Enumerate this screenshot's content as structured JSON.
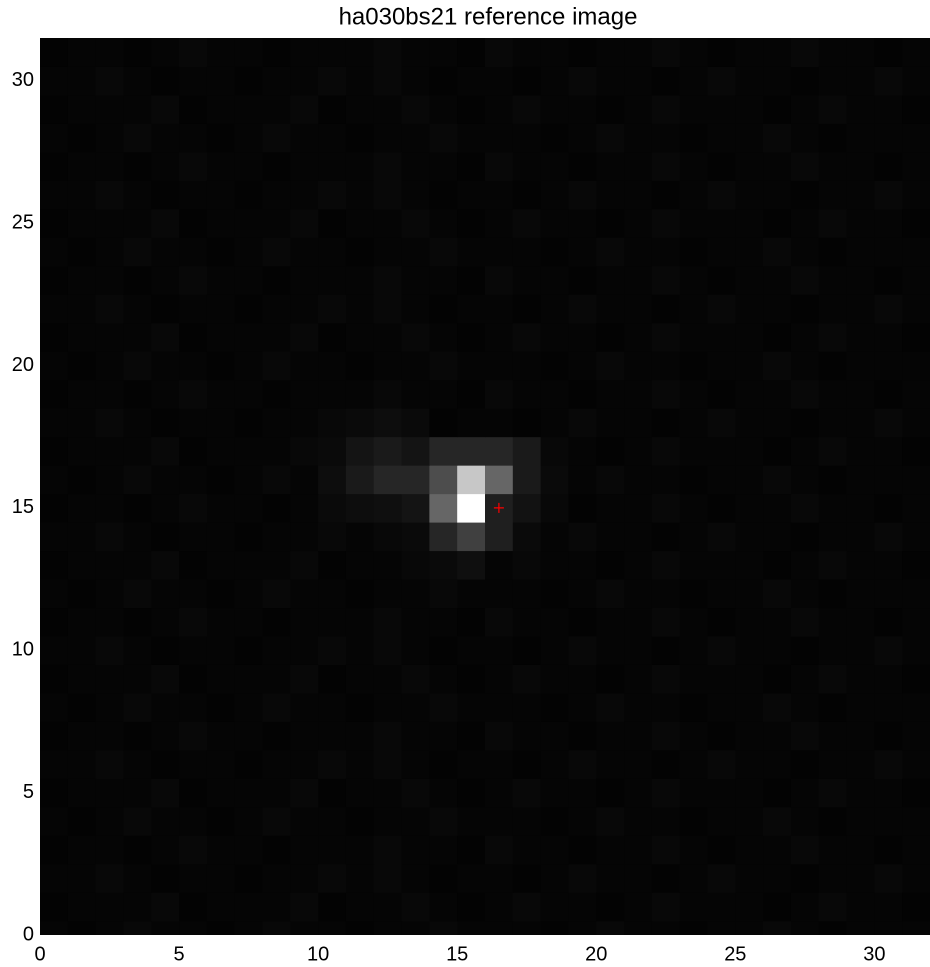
{
  "chart_data": {
    "type": "heatmap",
    "title": "ha030bs21 reference image",
    "xlim": [
      0,
      32
    ],
    "ylim": [
      0,
      31.5
    ],
    "xticks": [
      0,
      5,
      10,
      15,
      20,
      25,
      30
    ],
    "yticks": [
      0,
      5,
      10,
      15,
      20,
      25,
      30
    ],
    "colormap": "gray",
    "vmin": 0,
    "vmax": 1,
    "z": [
      [
        0.02,
        0.01,
        0.02,
        0.03,
        0.02,
        0.02,
        0.01,
        0.02,
        0.03,
        0.02,
        0.02,
        0.01,
        0.02,
        0.02,
        0.03,
        0.02,
        0.02,
        0.02,
        0.01,
        0.02,
        0.03,
        0.02,
        0.02,
        0.01,
        0.02,
        0.02,
        0.03,
        0.02,
        0.01,
        0.02,
        0.02,
        0.02
      ],
      [
        0.01,
        0.02,
        0.02,
        0.02,
        0.03,
        0.01,
        0.02,
        0.02,
        0.02,
        0.03,
        0.01,
        0.02,
        0.02,
        0.03,
        0.02,
        0.01,
        0.02,
        0.03,
        0.02,
        0.02,
        0.01,
        0.02,
        0.03,
        0.02,
        0.02,
        0.02,
        0.01,
        0.02,
        0.03,
        0.02,
        0.02,
        0.01
      ],
      [
        0.02,
        0.02,
        0.03,
        0.02,
        0.01,
        0.02,
        0.02,
        0.01,
        0.02,
        0.02,
        0.03,
        0.02,
        0.03,
        0.02,
        0.01,
        0.02,
        0.02,
        0.01,
        0.02,
        0.03,
        0.02,
        0.02,
        0.01,
        0.02,
        0.03,
        0.02,
        0.02,
        0.01,
        0.02,
        0.02,
        0.03,
        0.02
      ],
      [
        0.01,
        0.02,
        0.02,
        0.01,
        0.02,
        0.03,
        0.02,
        0.02,
        0.01,
        0.02,
        0.02,
        0.02,
        0.03,
        0.02,
        0.02,
        0.01,
        0.03,
        0.02,
        0.02,
        0.01,
        0.02,
        0.02,
        0.03,
        0.02,
        0.01,
        0.02,
        0.02,
        0.03,
        0.02,
        0.02,
        0.01,
        0.02
      ],
      [
        0.02,
        0.01,
        0.02,
        0.03,
        0.02,
        0.02,
        0.01,
        0.02,
        0.03,
        0.02,
        0.02,
        0.01,
        0.02,
        0.02,
        0.03,
        0.02,
        0.02,
        0.02,
        0.01,
        0.02,
        0.03,
        0.02,
        0.02,
        0.01,
        0.02,
        0.02,
        0.03,
        0.02,
        0.01,
        0.02,
        0.02,
        0.02
      ],
      [
        0.01,
        0.02,
        0.02,
        0.02,
        0.03,
        0.01,
        0.02,
        0.02,
        0.02,
        0.03,
        0.01,
        0.02,
        0.02,
        0.03,
        0.02,
        0.01,
        0.02,
        0.03,
        0.02,
        0.02,
        0.01,
        0.02,
        0.03,
        0.02,
        0.02,
        0.02,
        0.01,
        0.02,
        0.03,
        0.02,
        0.02,
        0.01
      ],
      [
        0.02,
        0.02,
        0.03,
        0.02,
        0.01,
        0.02,
        0.02,
        0.01,
        0.02,
        0.02,
        0.03,
        0.02,
        0.03,
        0.02,
        0.01,
        0.02,
        0.02,
        0.01,
        0.02,
        0.03,
        0.02,
        0.02,
        0.01,
        0.02,
        0.03,
        0.02,
        0.02,
        0.01,
        0.02,
        0.02,
        0.03,
        0.02
      ],
      [
        0.01,
        0.02,
        0.02,
        0.01,
        0.02,
        0.03,
        0.02,
        0.02,
        0.01,
        0.02,
        0.02,
        0.02,
        0.03,
        0.02,
        0.02,
        0.01,
        0.03,
        0.02,
        0.02,
        0.01,
        0.02,
        0.02,
        0.03,
        0.02,
        0.01,
        0.02,
        0.02,
        0.03,
        0.02,
        0.02,
        0.01,
        0.02
      ],
      [
        0.02,
        0.01,
        0.02,
        0.03,
        0.02,
        0.02,
        0.01,
        0.02,
        0.03,
        0.02,
        0.02,
        0.01,
        0.02,
        0.02,
        0.03,
        0.02,
        0.02,
        0.02,
        0.01,
        0.02,
        0.03,
        0.02,
        0.02,
        0.01,
        0.02,
        0.02,
        0.03,
        0.02,
        0.01,
        0.02,
        0.02,
        0.02
      ],
      [
        0.01,
        0.02,
        0.02,
        0.02,
        0.03,
        0.01,
        0.02,
        0.02,
        0.02,
        0.03,
        0.01,
        0.02,
        0.02,
        0.03,
        0.02,
        0.01,
        0.02,
        0.03,
        0.02,
        0.02,
        0.01,
        0.02,
        0.03,
        0.02,
        0.02,
        0.02,
        0.01,
        0.02,
        0.03,
        0.02,
        0.02,
        0.01
      ],
      [
        0.02,
        0.02,
        0.03,
        0.02,
        0.01,
        0.02,
        0.02,
        0.01,
        0.02,
        0.02,
        0.03,
        0.02,
        0.03,
        0.02,
        0.01,
        0.02,
        0.02,
        0.01,
        0.02,
        0.03,
        0.02,
        0.02,
        0.01,
        0.02,
        0.03,
        0.02,
        0.02,
        0.01,
        0.02,
        0.02,
        0.03,
        0.02
      ],
      [
        0.01,
        0.02,
        0.02,
        0.01,
        0.02,
        0.03,
        0.02,
        0.02,
        0.01,
        0.02,
        0.02,
        0.02,
        0.03,
        0.02,
        0.02,
        0.01,
        0.03,
        0.02,
        0.02,
        0.01,
        0.02,
        0.02,
        0.03,
        0.02,
        0.01,
        0.02,
        0.02,
        0.03,
        0.02,
        0.02,
        0.01,
        0.02
      ],
      [
        0.02,
        0.01,
        0.02,
        0.03,
        0.02,
        0.02,
        0.01,
        0.02,
        0.03,
        0.02,
        0.02,
        0.01,
        0.02,
        0.02,
        0.03,
        0.02,
        0.02,
        0.02,
        0.01,
        0.02,
        0.03,
        0.02,
        0.02,
        0.01,
        0.02,
        0.02,
        0.03,
        0.02,
        0.01,
        0.02,
        0.02,
        0.02
      ],
      [
        0.01,
        0.02,
        0.02,
        0.02,
        0.03,
        0.01,
        0.02,
        0.02,
        0.02,
        0.03,
        0.01,
        0.02,
        0.02,
        0.03,
        0.04,
        0.06,
        0.02,
        0.03,
        0.02,
        0.02,
        0.01,
        0.02,
        0.03,
        0.02,
        0.02,
        0.02,
        0.01,
        0.02,
        0.03,
        0.02,
        0.02,
        0.01
      ],
      [
        0.02,
        0.02,
        0.03,
        0.02,
        0.01,
        0.02,
        0.02,
        0.01,
        0.02,
        0.02,
        0.03,
        0.02,
        0.03,
        0.04,
        0.15,
        0.25,
        0.12,
        0.04,
        0.02,
        0.03,
        0.02,
        0.02,
        0.01,
        0.02,
        0.03,
        0.02,
        0.02,
        0.01,
        0.02,
        0.02,
        0.03,
        0.02
      ],
      [
        0.01,
        0.02,
        0.02,
        0.01,
        0.02,
        0.03,
        0.02,
        0.02,
        0.01,
        0.02,
        0.04,
        0.05,
        0.06,
        0.08,
        0.4,
        1.0,
        0.12,
        0.07,
        0.03,
        0.01,
        0.02,
        0.02,
        0.03,
        0.02,
        0.01,
        0.02,
        0.02,
        0.03,
        0.02,
        0.02,
        0.01,
        0.02
      ],
      [
        0.02,
        0.01,
        0.02,
        0.03,
        0.02,
        0.02,
        0.01,
        0.02,
        0.03,
        0.02,
        0.05,
        0.1,
        0.15,
        0.15,
        0.3,
        0.78,
        0.4,
        0.1,
        0.04,
        0.02,
        0.03,
        0.02,
        0.02,
        0.01,
        0.02,
        0.02,
        0.03,
        0.02,
        0.01,
        0.02,
        0.02,
        0.02
      ],
      [
        0.01,
        0.02,
        0.02,
        0.02,
        0.03,
        0.01,
        0.02,
        0.02,
        0.02,
        0.03,
        0.04,
        0.08,
        0.1,
        0.08,
        0.15,
        0.15,
        0.15,
        0.1,
        0.03,
        0.02,
        0.01,
        0.02,
        0.03,
        0.02,
        0.02,
        0.02,
        0.01,
        0.02,
        0.03,
        0.02,
        0.02,
        0.01
      ],
      [
        0.02,
        0.02,
        0.03,
        0.02,
        0.01,
        0.02,
        0.02,
        0.01,
        0.02,
        0.02,
        0.03,
        0.04,
        0.05,
        0.04,
        0.01,
        0.02,
        0.02,
        0.01,
        0.02,
        0.03,
        0.02,
        0.02,
        0.01,
        0.02,
        0.03,
        0.02,
        0.02,
        0.01,
        0.02,
        0.02,
        0.03,
        0.02
      ],
      [
        0.01,
        0.02,
        0.02,
        0.01,
        0.02,
        0.03,
        0.02,
        0.02,
        0.01,
        0.02,
        0.02,
        0.02,
        0.03,
        0.02,
        0.02,
        0.01,
        0.03,
        0.02,
        0.02,
        0.01,
        0.02,
        0.02,
        0.03,
        0.02,
        0.01,
        0.02,
        0.02,
        0.03,
        0.02,
        0.02,
        0.01,
        0.02
      ],
      [
        0.02,
        0.01,
        0.02,
        0.03,
        0.02,
        0.02,
        0.01,
        0.02,
        0.03,
        0.02,
        0.02,
        0.01,
        0.02,
        0.02,
        0.03,
        0.02,
        0.02,
        0.02,
        0.01,
        0.02,
        0.03,
        0.02,
        0.02,
        0.01,
        0.02,
        0.02,
        0.03,
        0.02,
        0.01,
        0.02,
        0.02,
        0.02
      ],
      [
        0.01,
        0.02,
        0.02,
        0.02,
        0.03,
        0.01,
        0.02,
        0.02,
        0.02,
        0.03,
        0.01,
        0.02,
        0.02,
        0.03,
        0.02,
        0.01,
        0.02,
        0.03,
        0.02,
        0.02,
        0.01,
        0.02,
        0.03,
        0.02,
        0.02,
        0.02,
        0.01,
        0.02,
        0.03,
        0.02,
        0.02,
        0.01
      ],
      [
        0.02,
        0.02,
        0.03,
        0.02,
        0.01,
        0.02,
        0.02,
        0.01,
        0.02,
        0.02,
        0.03,
        0.02,
        0.03,
        0.02,
        0.01,
        0.02,
        0.02,
        0.01,
        0.02,
        0.03,
        0.02,
        0.02,
        0.01,
        0.02,
        0.03,
        0.02,
        0.02,
        0.01,
        0.02,
        0.02,
        0.03,
        0.02
      ],
      [
        0.01,
        0.02,
        0.02,
        0.01,
        0.02,
        0.03,
        0.02,
        0.02,
        0.01,
        0.02,
        0.02,
        0.02,
        0.03,
        0.02,
        0.02,
        0.01,
        0.03,
        0.02,
        0.02,
        0.01,
        0.02,
        0.02,
        0.03,
        0.02,
        0.01,
        0.02,
        0.02,
        0.03,
        0.02,
        0.02,
        0.01,
        0.02
      ],
      [
        0.02,
        0.01,
        0.02,
        0.03,
        0.02,
        0.02,
        0.01,
        0.02,
        0.03,
        0.02,
        0.02,
        0.01,
        0.02,
        0.02,
        0.03,
        0.02,
        0.02,
        0.02,
        0.01,
        0.02,
        0.03,
        0.02,
        0.02,
        0.01,
        0.02,
        0.02,
        0.03,
        0.02,
        0.01,
        0.02,
        0.02,
        0.02
      ],
      [
        0.01,
        0.02,
        0.02,
        0.02,
        0.03,
        0.01,
        0.02,
        0.02,
        0.02,
        0.03,
        0.01,
        0.02,
        0.02,
        0.03,
        0.02,
        0.01,
        0.02,
        0.03,
        0.02,
        0.02,
        0.01,
        0.02,
        0.03,
        0.02,
        0.02,
        0.02,
        0.01,
        0.02,
        0.03,
        0.02,
        0.02,
        0.01
      ],
      [
        0.02,
        0.02,
        0.03,
        0.02,
        0.01,
        0.02,
        0.02,
        0.01,
        0.02,
        0.02,
        0.03,
        0.02,
        0.03,
        0.02,
        0.01,
        0.02,
        0.02,
        0.01,
        0.02,
        0.03,
        0.02,
        0.02,
        0.01,
        0.02,
        0.03,
        0.02,
        0.02,
        0.01,
        0.02,
        0.02,
        0.03,
        0.02
      ],
      [
        0.01,
        0.02,
        0.02,
        0.01,
        0.02,
        0.03,
        0.02,
        0.02,
        0.01,
        0.02,
        0.02,
        0.02,
        0.03,
        0.02,
        0.02,
        0.01,
        0.03,
        0.02,
        0.02,
        0.01,
        0.02,
        0.02,
        0.03,
        0.02,
        0.01,
        0.02,
        0.02,
        0.03,
        0.02,
        0.02,
        0.01,
        0.02
      ],
      [
        0.02,
        0.01,
        0.02,
        0.03,
        0.02,
        0.02,
        0.01,
        0.02,
        0.03,
        0.02,
        0.02,
        0.01,
        0.02,
        0.02,
        0.03,
        0.02,
        0.02,
        0.02,
        0.01,
        0.02,
        0.03,
        0.02,
        0.02,
        0.01,
        0.02,
        0.02,
        0.03,
        0.02,
        0.01,
        0.02,
        0.02,
        0.02
      ],
      [
        0.01,
        0.02,
        0.02,
        0.02,
        0.03,
        0.01,
        0.02,
        0.02,
        0.02,
        0.03,
        0.01,
        0.02,
        0.02,
        0.03,
        0.02,
        0.01,
        0.02,
        0.03,
        0.02,
        0.02,
        0.01,
        0.02,
        0.03,
        0.02,
        0.02,
        0.02,
        0.01,
        0.02,
        0.03,
        0.02,
        0.02,
        0.01
      ],
      [
        0.02,
        0.02,
        0.03,
        0.02,
        0.01,
        0.02,
        0.02,
        0.01,
        0.02,
        0.02,
        0.03,
        0.02,
        0.03,
        0.02,
        0.01,
        0.02,
        0.02,
        0.01,
        0.02,
        0.03,
        0.02,
        0.02,
        0.01,
        0.02,
        0.03,
        0.02,
        0.02,
        0.01,
        0.02,
        0.02,
        0.03,
        0.02
      ],
      [
        0.01,
        0.02,
        0.02,
        0.01,
        0.02,
        0.03,
        0.02,
        0.02,
        0.01,
        0.02,
        0.02,
        0.02,
        0.03,
        0.02,
        0.02,
        0.01,
        0.03,
        0.02,
        0.02,
        0.01,
        0.02,
        0.02,
        0.03,
        0.02,
        0.01,
        0.02,
        0.02,
        0.03,
        0.02,
        0.02,
        0.01,
        0.02
      ]
    ],
    "marker": {
      "x": 16.5,
      "y": 15,
      "color": "#ff0000"
    }
  }
}
